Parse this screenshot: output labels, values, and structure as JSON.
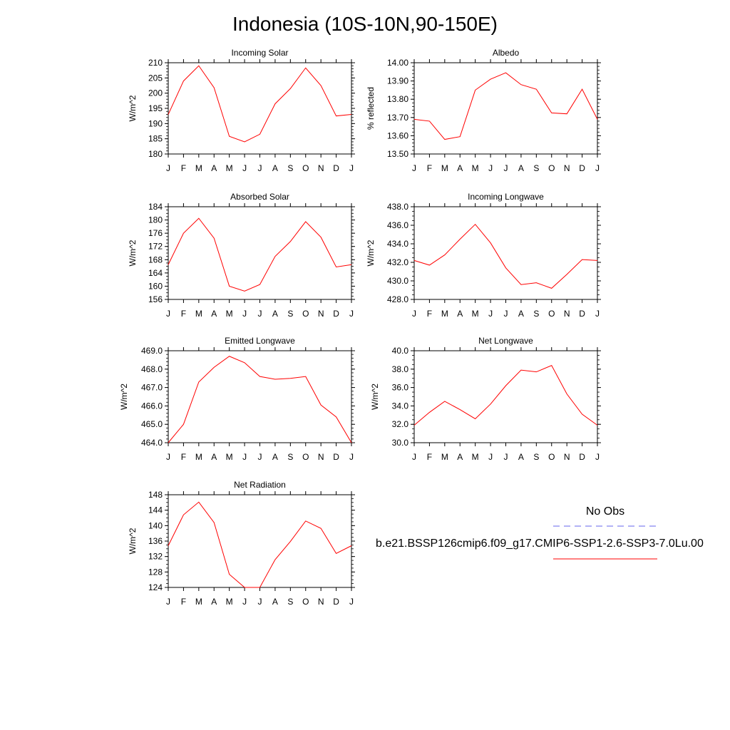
{
  "title": "Indonesia (10S-10N,90-150E)",
  "months": [
    "J",
    "F",
    "M",
    "A",
    "M",
    "J",
    "J",
    "A",
    "S",
    "O",
    "N",
    "D",
    "J"
  ],
  "legend": {
    "obs_label": "No Obs",
    "obs_color": "#6666ee",
    "model_label": "b.e21.BSSP126cmip6.f09_g17.CMIP6-SSP1-2.6-SSP3-7.0Lu.00",
    "model_color": "#ff0000"
  },
  "chart_data": [
    {
      "type": "line",
      "title": "Incoming Solar",
      "ylabel": "W/m^2",
      "ylim": [
        180,
        210
      ],
      "yticks": [
        "180",
        "185",
        "190",
        "195",
        "200",
        "205",
        "210"
      ],
      "ytick_step": 5,
      "minor_step": 1,
      "series": [
        {
          "values": [
            193.0,
            204.0,
            209.0,
            201.8,
            185.8,
            184.0,
            186.5,
            196.5,
            201.5,
            208.3,
            202.5,
            192.5,
            193.0
          ]
        }
      ]
    },
    {
      "type": "line",
      "title": "Albedo",
      "ylabel": "% reflected",
      "ylim": [
        13.5,
        14.0
      ],
      "yticks": [
        "13.50",
        "13.60",
        "13.70",
        "13.80",
        "13.90",
        "14.00"
      ],
      "ytick_step": 0.1,
      "minor_step": 0.02,
      "series": [
        {
          "values": [
            13.69,
            13.68,
            13.58,
            13.595,
            13.85,
            13.91,
            13.945,
            13.88,
            13.855,
            13.725,
            13.72,
            13.855,
            13.69
          ]
        }
      ]
    },
    {
      "type": "line",
      "title": "Absorbed Solar",
      "ylabel": "W/m^2",
      "ylim": [
        156,
        184
      ],
      "yticks": [
        "156",
        "160",
        "164",
        "168",
        "172",
        "176",
        "180",
        "184"
      ],
      "ytick_step": 4,
      "minor_step": 1,
      "series": [
        {
          "values": [
            166.5,
            176.0,
            180.5,
            174.5,
            160.0,
            158.5,
            160.5,
            169.0,
            173.5,
            179.5,
            174.8,
            165.8,
            166.5
          ]
        }
      ]
    },
    {
      "type": "line",
      "title": "Incoming Longwave",
      "ylabel": "W/m^2",
      "ylim": [
        428,
        438
      ],
      "yticks": [
        "428.0",
        "430.0",
        "432.0",
        "434.0",
        "436.0",
        "438.0"
      ],
      "ytick_step": 2,
      "minor_step": 0.5,
      "series": [
        {
          "values": [
            432.2,
            431.7,
            432.8,
            434.5,
            436.1,
            434.1,
            431.4,
            429.6,
            429.8,
            429.2,
            430.7,
            432.3,
            432.2
          ]
        }
      ]
    },
    {
      "type": "line",
      "title": "Emitted Longwave",
      "ylabel": "W/m^2",
      "ylim": [
        464,
        469
      ],
      "yticks": [
        "464.0",
        "465.0",
        "466.0",
        "467.0",
        "468.0",
        "469.0"
      ],
      "ytick_step": 1,
      "minor_step": 0.2,
      "series": [
        {
          "values": [
            464.0,
            465.0,
            467.3,
            468.1,
            468.7,
            468.35,
            467.6,
            467.45,
            467.5,
            467.6,
            466.05,
            465.4,
            464.0
          ]
        }
      ]
    },
    {
      "type": "line",
      "title": "Net Longwave",
      "ylabel": "W/m^2",
      "ylim": [
        30,
        40
      ],
      "yticks": [
        "30.0",
        "32.0",
        "34.0",
        "36.0",
        "38.0",
        "40.0"
      ],
      "ytick_step": 2,
      "minor_step": 0.5,
      "series": [
        {
          "values": [
            31.9,
            33.3,
            34.5,
            33.6,
            32.6,
            34.2,
            36.2,
            37.9,
            37.7,
            38.4,
            35.3,
            33.1,
            31.9
          ]
        }
      ]
    },
    {
      "type": "line",
      "title": "Net Radiation",
      "ylabel": "W/m^2",
      "ylim": [
        124,
        148
      ],
      "yticks": [
        "124",
        "128",
        "132",
        "136",
        "140",
        "144",
        "148"
      ],
      "ytick_step": 4,
      "minor_step": 1,
      "series": [
        {
          "values": [
            134.8,
            142.8,
            146.1,
            140.8,
            127.4,
            124.0,
            124.0,
            131.2,
            135.9,
            141.2,
            139.3,
            132.8,
            134.8
          ]
        }
      ]
    }
  ]
}
